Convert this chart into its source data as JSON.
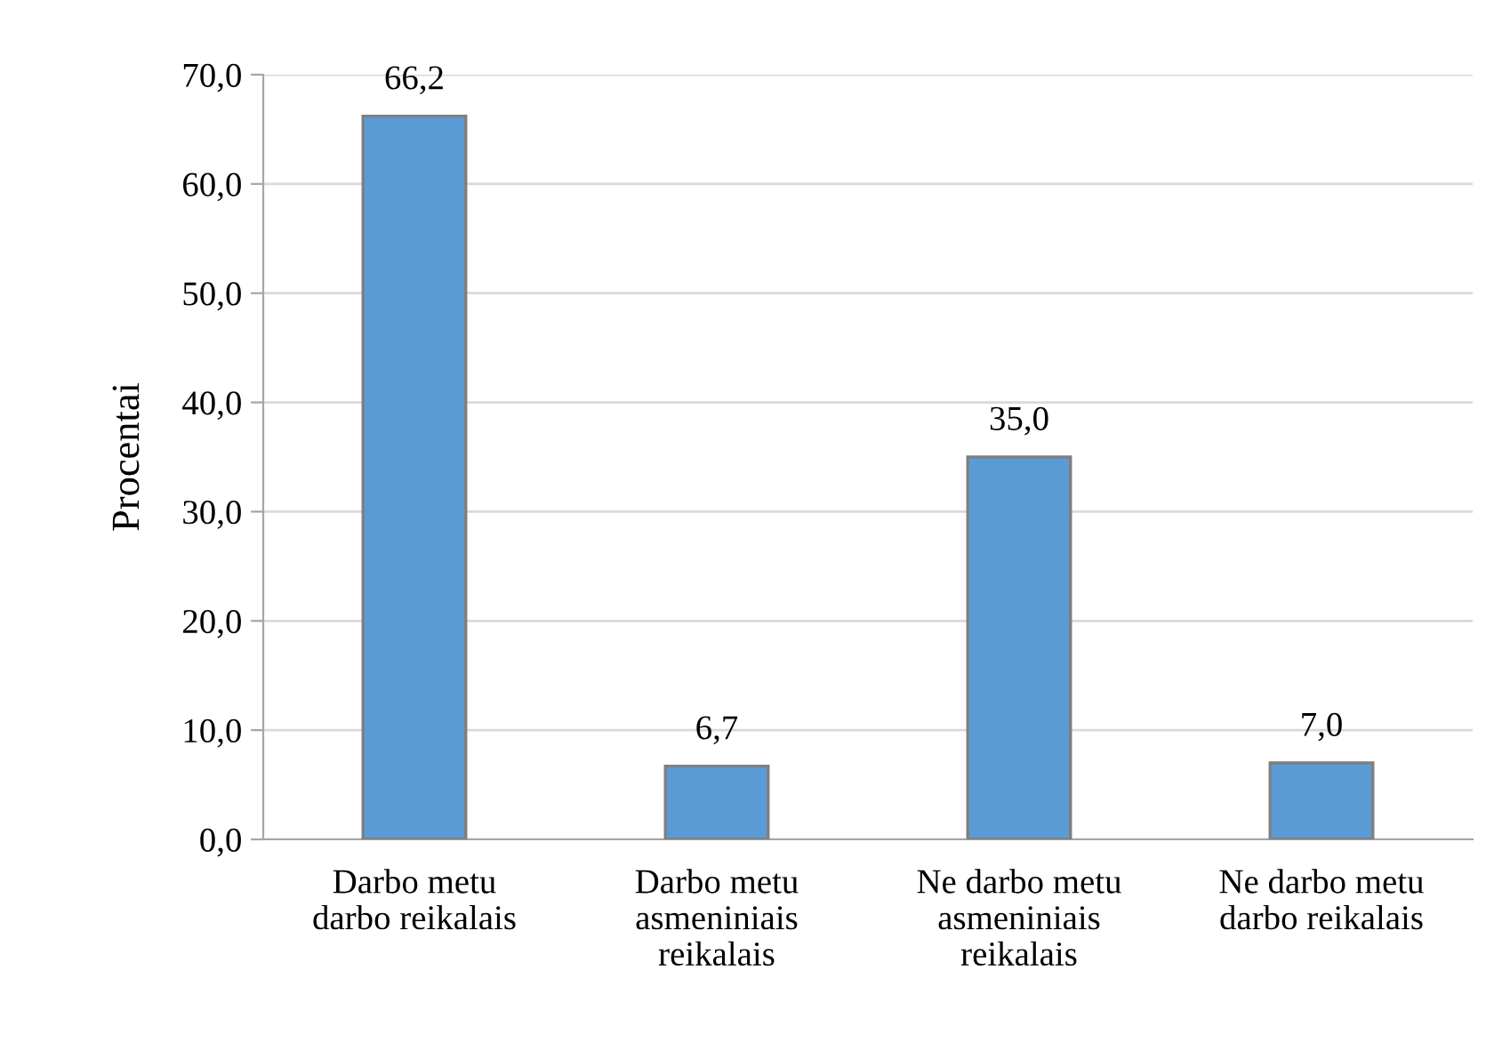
{
  "chart_data": {
    "type": "bar",
    "ylabel": "Procentai",
    "categories": [
      "Darbo metu\ndarbo reikalais",
      "Darbo metu\nasmeniniais\nreikalais",
      "Ne darbo metu\nasmeniniais\nreikalais",
      "Ne darbo metu\ndarbo reikalais"
    ],
    "values": [
      66.2,
      6.7,
      35.0,
      7.0
    ],
    "value_labels": [
      "66,2",
      "6,7",
      "35,0",
      "7,0"
    ],
    "color": "#5b9bd5",
    "ylim": [
      0,
      70
    ],
    "yticks": [
      {
        "value": 0,
        "label": "0,0"
      },
      {
        "value": 10,
        "label": "10,0"
      },
      {
        "value": 20,
        "label": "20,0"
      },
      {
        "value": 30,
        "label": "30,0"
      },
      {
        "value": 40,
        "label": "40,0"
      },
      {
        "value": 50,
        "label": "50,0"
      },
      {
        "value": 60,
        "label": "60,0"
      },
      {
        "value": 70,
        "label": "70,0"
      }
    ],
    "grid": "y",
    "legend": false
  }
}
